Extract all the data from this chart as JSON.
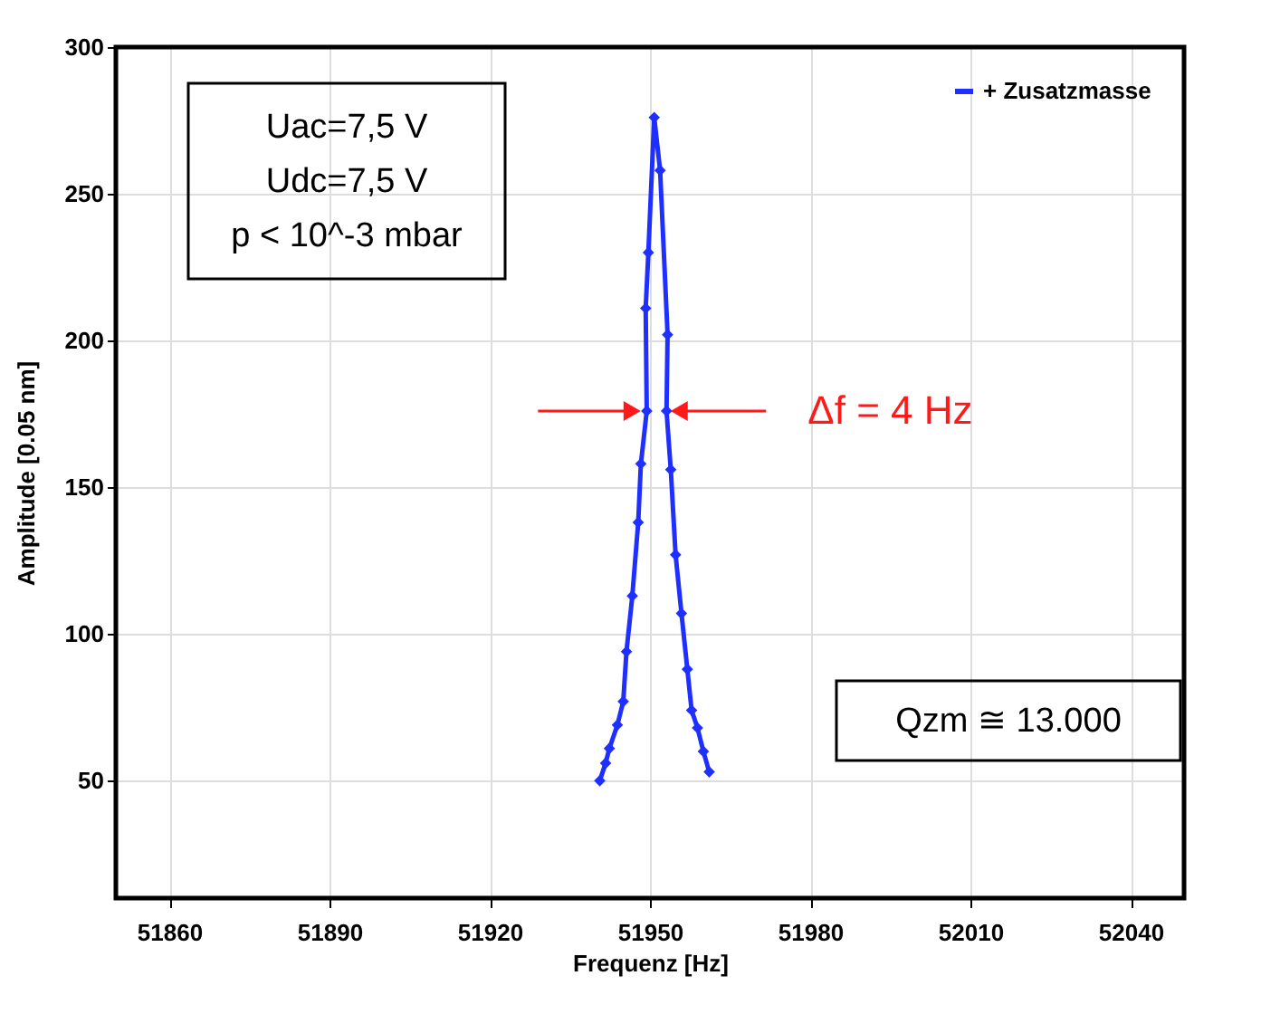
{
  "chart_data": {
    "type": "line",
    "xlabel": "Frequenz [Hz]",
    "ylabel": "Amplitude [0.05 nm]",
    "xlim": [
      51850,
      52050
    ],
    "ylim": [
      10,
      300
    ],
    "xticks": [
      51860,
      51890,
      51920,
      51950,
      51980,
      52010,
      52040
    ],
    "yticks": [
      50,
      100,
      150,
      200,
      250,
      300
    ],
    "grid": true,
    "legend": "top right",
    "marker": "diamond",
    "series": [
      {
        "name": "+ Zusatzmasse",
        "color": "#1f2fff",
        "x": [
          51940.6,
          51941.7,
          51942.4,
          51943.9,
          51945,
          51945.6,
          51946.7,
          51947.8,
          51948.3,
          51949.4,
          51949.2,
          51949.7,
          51950.8,
          51951.9,
          51953.3,
          51953.1,
          51953.9,
          51954.8,
          51955.9,
          51957,
          51957.8,
          51958.9,
          51960,
          51961.1
        ],
        "values": [
          50,
          56,
          61,
          69,
          77,
          94,
          113,
          138,
          158,
          176,
          211,
          230,
          276,
          258,
          202,
          176,
          156,
          127,
          107,
          88,
          74,
          68,
          60,
          53
        ]
      }
    ],
    "annotations": [
      "Uac=7,5 V\nUdc=7,5 V\np < 10^-3 mbar",
      {
        "text": "Δf = 4 Hz",
        "x": 51953.1,
        "y": 176
      },
      "Qzm ≅ 13.000"
    ]
  }
}
